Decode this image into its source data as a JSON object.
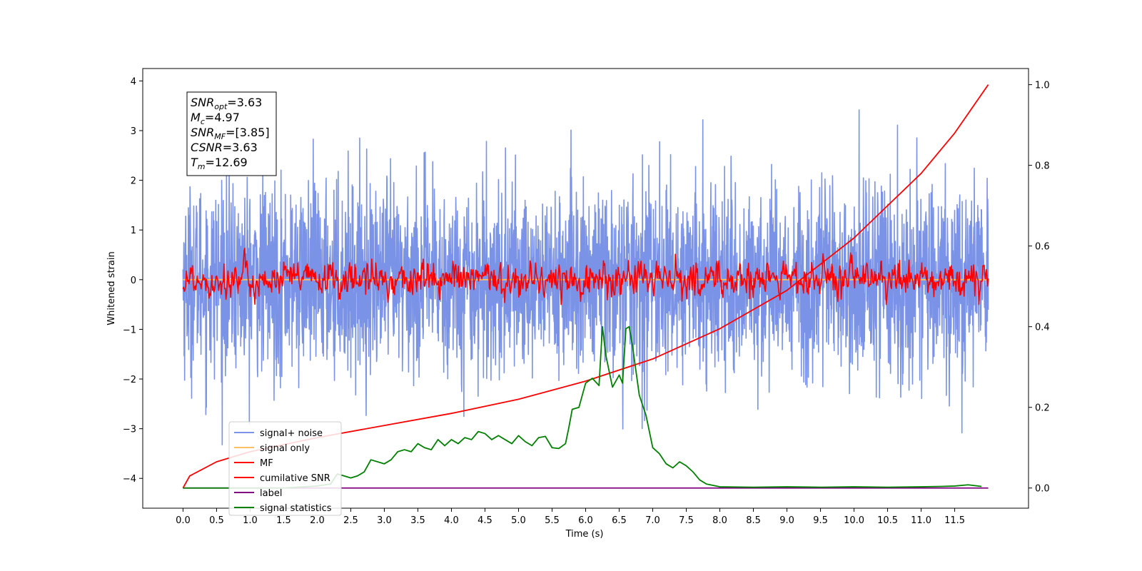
{
  "chart_data": {
    "type": "line",
    "xlabel": "Time (s)",
    "ylabel": "Whitened strain",
    "xlim": [
      -0.6,
      12.6
    ],
    "ylim": [
      -4.6,
      4.25
    ],
    "y2lim": [
      -0.05,
      1.04
    ],
    "x_ticks": [
      0.0,
      0.5,
      1.0,
      1.5,
      2.0,
      2.5,
      3.0,
      3.5,
      4.0,
      4.5,
      5.0,
      5.5,
      6.0,
      6.5,
      7.0,
      7.5,
      8.0,
      8.5,
      9.0,
      9.5,
      10.0,
      10.5,
      11.0,
      11.5
    ],
    "x_tick_labels": [
      "0.0",
      "0.5",
      "1.0",
      "1.5",
      "2.0",
      "2.5",
      "3.0",
      "3.5",
      "4.0",
      "4.5",
      "5.0",
      "5.5",
      "6.0",
      "6.5",
      "7.0",
      "7.5",
      "8.0",
      "8.5",
      "9.0",
      "9.5",
      "10.0",
      "10.5",
      "11.0",
      "11.5"
    ],
    "y_ticks": [
      4,
      3,
      2,
      1,
      0,
      -1,
      -2,
      -3,
      -4
    ],
    "y_tick_labels": [
      "4",
      "3",
      "2",
      "1",
      "0",
      "−1",
      "−2",
      "−3",
      "−4"
    ],
    "y2_ticks": [
      1.0,
      0.8,
      0.6,
      0.4,
      0.2,
      0.0
    ],
    "y2_tick_labels": [
      "1.0",
      "0.8",
      "0.6",
      "0.4",
      "0.2",
      "0.0"
    ],
    "annotation": [
      {
        "base": "SNR",
        "sub": "opt",
        "val": "=3.63"
      },
      {
        "base": "M",
        "sub": "c",
        "val": "=4.97"
      },
      {
        "base": "SNR",
        "sub": "MF",
        "val": "=[3.85]"
      },
      {
        "base": "CSNR",
        "sub": "",
        "val": "=3.63"
      },
      {
        "base": "T",
        "sub": "m",
        "val": "=12.69"
      }
    ],
    "legend_position": "lower-left",
    "series": [
      {
        "name": "signal+ noise",
        "color": "#7b93e6",
        "axis": "left",
        "form": "noise",
        "x_range": [
          0,
          12
        ],
        "amplitude_range": [
          -3.45,
          3.85
        ],
        "sigma": 0.95
      },
      {
        "name": "signal only",
        "color": "#ffbf66",
        "axis": "left",
        "form": "flat",
        "x_range": [
          0,
          12
        ],
        "value": 0
      },
      {
        "name": "MF",
        "color": "#ff0000",
        "axis": "left",
        "form": "noise",
        "x_range": [
          0,
          12
        ],
        "amplitude_range": [
          -0.5,
          0.85
        ],
        "sigma": 0.2
      },
      {
        "name": "cumilative SNR",
        "color": "#ff0000",
        "axis": "right",
        "form": "curve",
        "x": [
          0,
          0.1,
          0.5,
          1.0,
          2.0,
          3.0,
          4.0,
          5.0,
          6.0,
          7.0,
          8.0,
          9.0,
          10.0,
          10.5,
          11.0,
          11.5,
          12.0
        ],
        "y": [
          0.0,
          0.03,
          0.065,
          0.09,
          0.125,
          0.155,
          0.185,
          0.22,
          0.265,
          0.32,
          0.395,
          0.49,
          0.62,
          0.7,
          0.78,
          0.88,
          1.0
        ]
      },
      {
        "name": "label",
        "color": "#800080",
        "axis": "right",
        "form": "flat",
        "x_range": [
          0,
          12
        ],
        "value": 0.0
      },
      {
        "name": "signal statistics",
        "color": "#008000",
        "axis": "right",
        "form": "curve",
        "x": [
          0,
          0.5,
          1.0,
          1.5,
          2.0,
          2.2,
          2.3,
          2.4,
          2.5,
          2.6,
          2.7,
          2.8,
          2.9,
          3.0,
          3.1,
          3.2,
          3.3,
          3.4,
          3.5,
          3.6,
          3.7,
          3.8,
          3.9,
          4.0,
          4.1,
          4.2,
          4.3,
          4.4,
          4.5,
          4.6,
          4.7,
          4.8,
          4.9,
          5.0,
          5.1,
          5.2,
          5.3,
          5.4,
          5.5,
          5.6,
          5.7,
          5.75,
          5.8,
          5.9,
          6.0,
          6.1,
          6.2,
          6.25,
          6.3,
          6.4,
          6.5,
          6.55,
          6.6,
          6.65,
          6.7,
          6.8,
          6.9,
          7.0,
          7.1,
          7.2,
          7.3,
          7.4,
          7.5,
          7.6,
          7.7,
          7.8,
          8.0,
          8.5,
          9.0,
          9.5,
          10.0,
          10.5,
          11.0,
          11.3,
          11.5,
          11.7,
          11.9
        ],
        "y": [
          0.0,
          0.0,
          0.0,
          0.0,
          0.005,
          0.01,
          0.035,
          0.03,
          0.025,
          0.03,
          0.04,
          0.07,
          0.065,
          0.06,
          0.07,
          0.09,
          0.095,
          0.09,
          0.11,
          0.1,
          0.095,
          0.12,
          0.105,
          0.12,
          0.11,
          0.125,
          0.12,
          0.14,
          0.135,
          0.12,
          0.13,
          0.12,
          0.11,
          0.13,
          0.115,
          0.105,
          0.125,
          0.128,
          0.1,
          0.098,
          0.11,
          0.15,
          0.195,
          0.2,
          0.26,
          0.272,
          0.254,
          0.4,
          0.33,
          0.25,
          0.28,
          0.26,
          0.395,
          0.4,
          0.35,
          0.23,
          0.18,
          0.1,
          0.085,
          0.06,
          0.05,
          0.065,
          0.055,
          0.04,
          0.02,
          0.01,
          0.003,
          0.002,
          0.003,
          0.002,
          0.003,
          0.002,
          0.003,
          0.004,
          0.005,
          0.008,
          0.004
        ]
      }
    ]
  }
}
